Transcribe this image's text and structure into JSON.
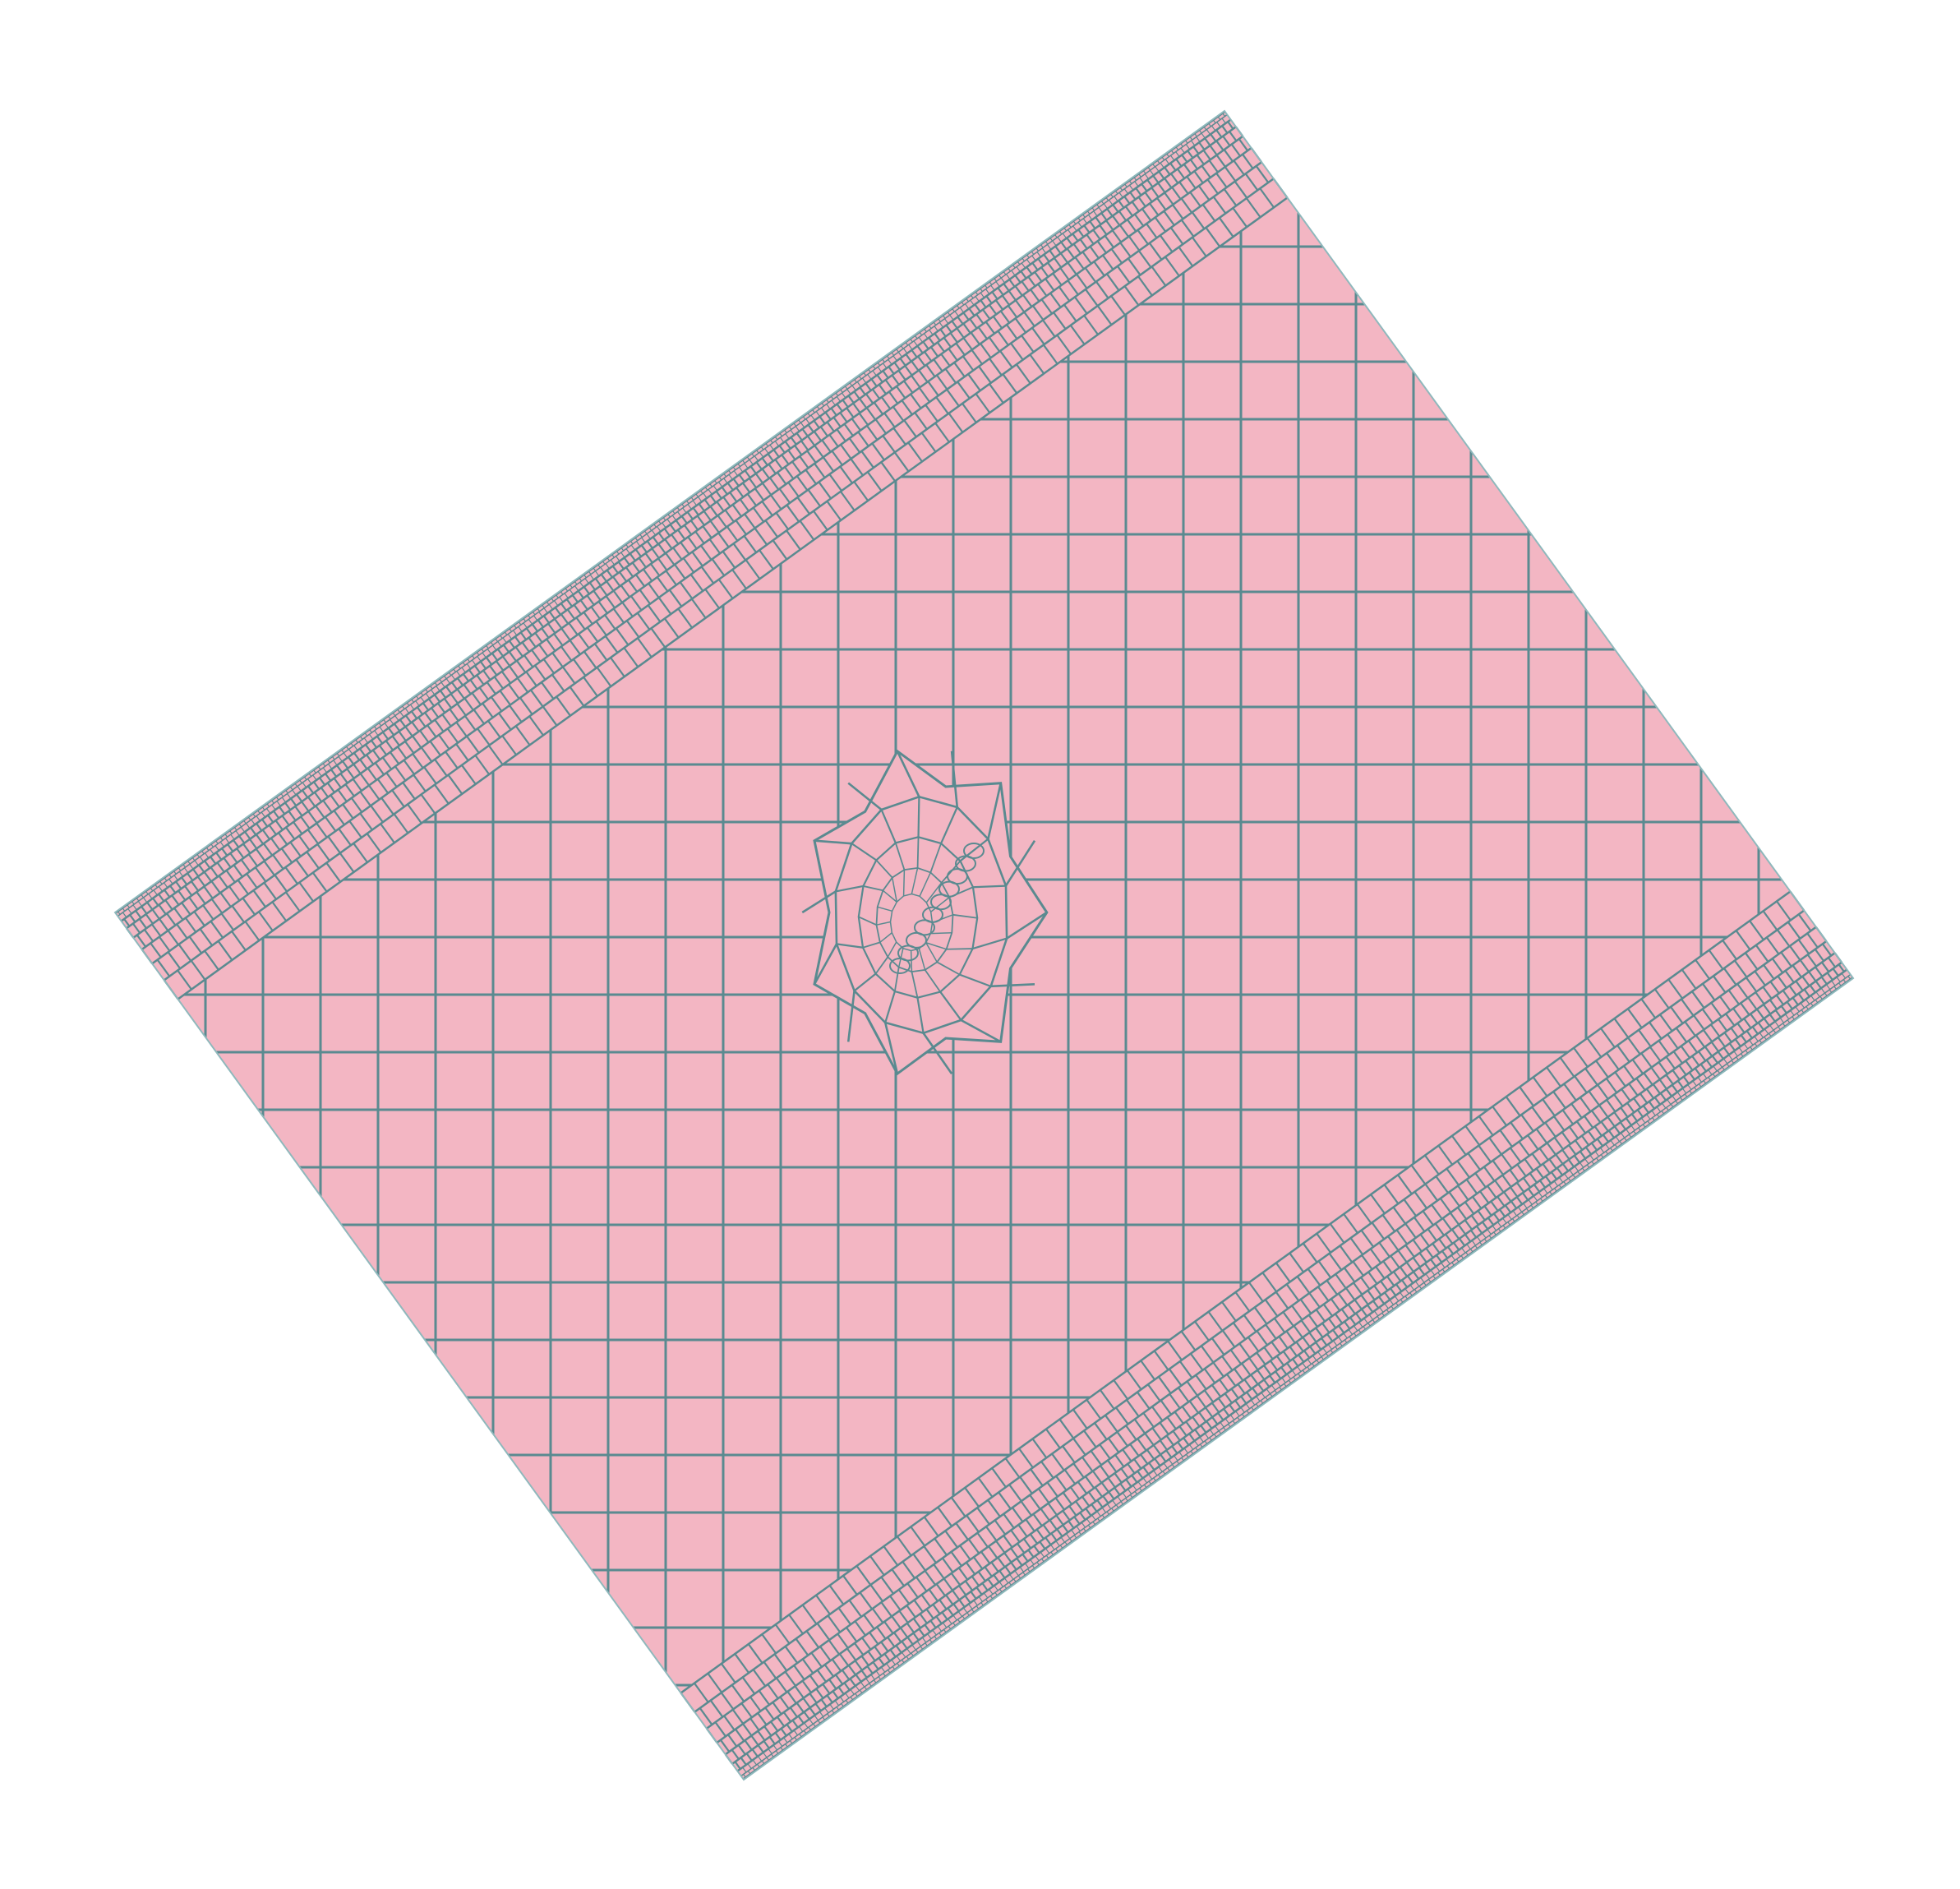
{
  "figure": {
    "kind": "polygonal mesh of a rotated rectangular domain",
    "colors": {
      "background": "#ffffff",
      "domain_fill": "#f3b6c3",
      "mesh_line": "#5a8a90",
      "outline": "#8fb8bc"
    },
    "regions": {
      "top_left_border": "boundary-layer-refinement",
      "bottom_right_border": "boundary-layer-refinement",
      "interior": "structured-quad-grid",
      "center": "local-refinement-cluster"
    }
  }
}
